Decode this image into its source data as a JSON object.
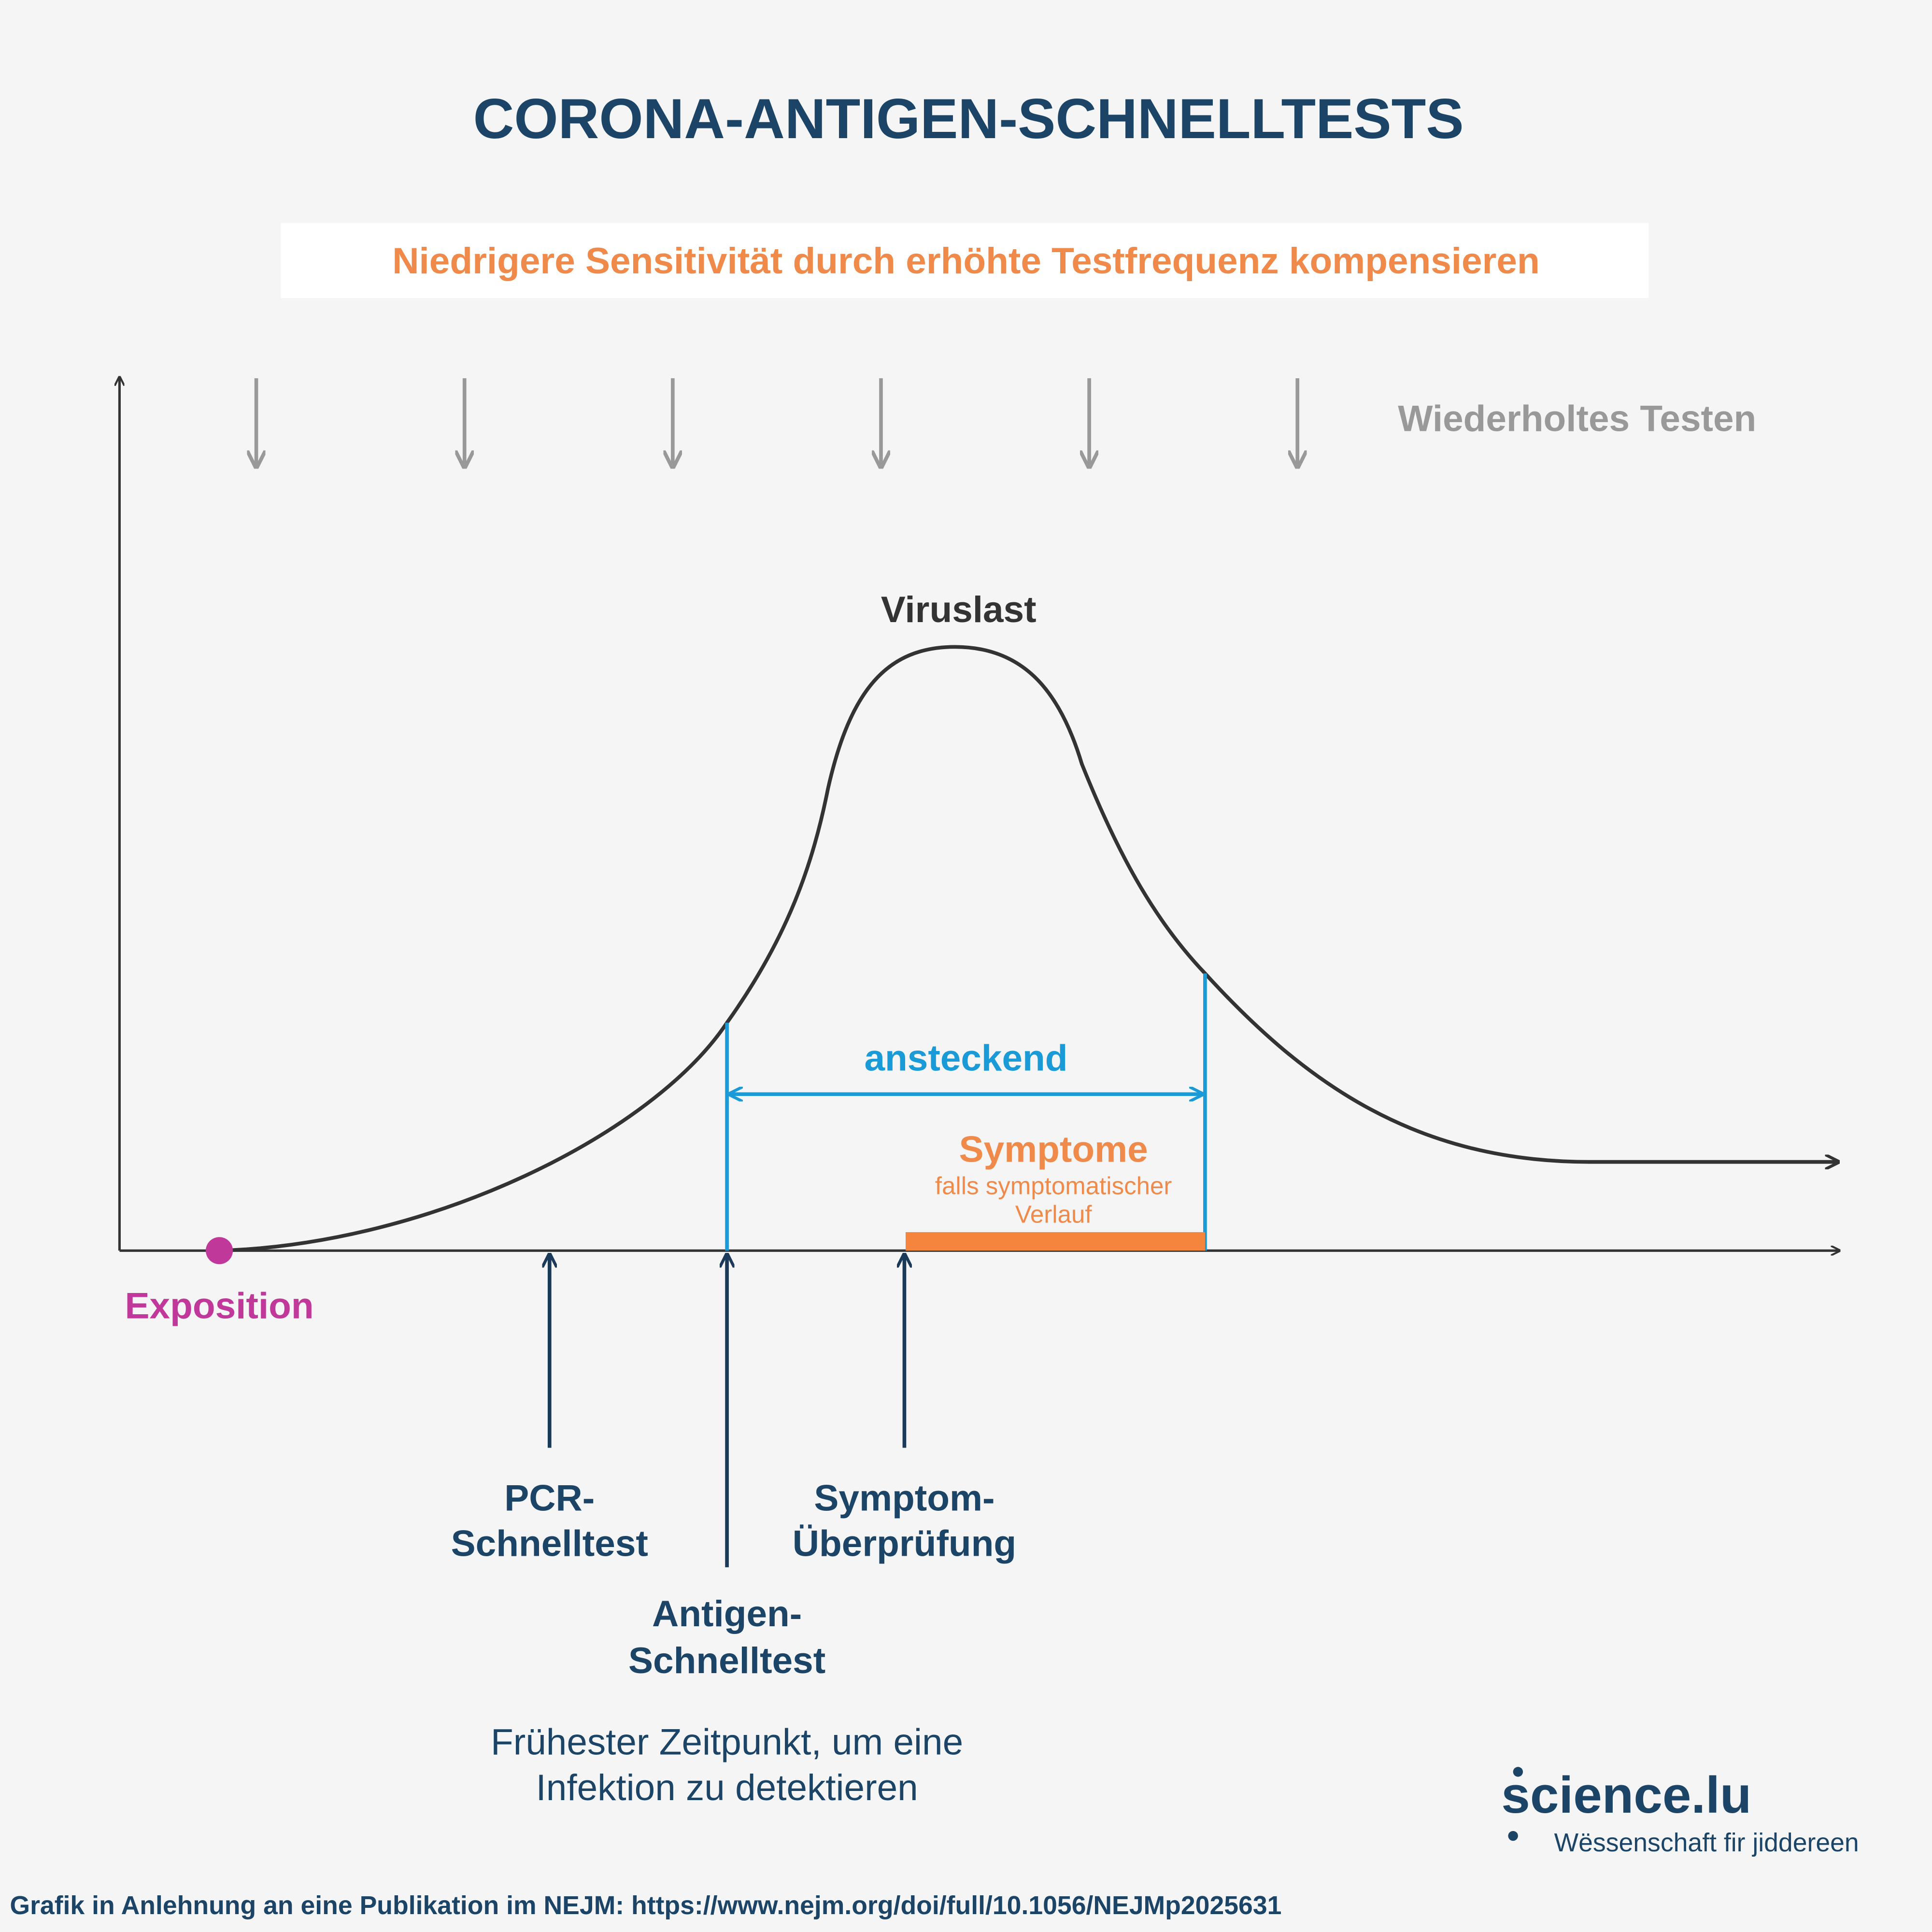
{
  "header": {
    "title": "CORONA-ANTIGEN-SCHNELLTESTS",
    "subtitle": "Niedrigere Sensitivität durch erhöhte Testfrequenz kompensieren"
  },
  "diagram": {
    "repeated_testing": "Wiederholtes Testen",
    "curve_label": "Viruslast",
    "infectious": "ansteckend",
    "symptoms": "Symptome",
    "symptoms_note": [
      "falls symptomatischer",
      "Verlauf"
    ],
    "exposure": "Exposition",
    "tests": [
      {
        "label": [
          "PCR-",
          "Schnelltest"
        ]
      },
      {
        "label": [
          "Antigen-",
          "Schnelltest"
        ]
      },
      {
        "label": [
          "Symptom-",
          "Überprüfung"
        ]
      }
    ],
    "caption": [
      "Frühester Zeitpunkt, um eine",
      "Infektion zu detektieren"
    ]
  },
  "footer": {
    "logo": "science.lu",
    "tagline": "Wëssenschaft fir jiddereen",
    "source": "Grafik in Anlehnung an eine Publikation im NEJM:  https://www.nejm.org/doi/full/10.1056/NEJMp2025631"
  }
}
